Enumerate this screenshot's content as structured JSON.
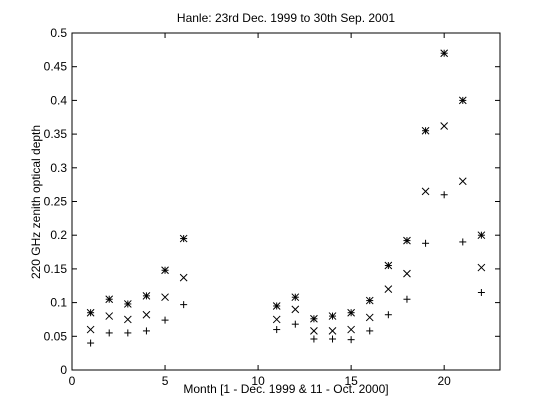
{
  "chart_data": {
    "type": "scatter",
    "title": "Hanle: 23rd  Dec. 1999 to 30th Sep. 2001",
    "xlabel": "Month [1 - Dec. 1999 & 11 - Oct. 2000]",
    "ylabel": "220 GHz zenith optical depth",
    "xlim": [
      0,
      23
    ],
    "ylim": [
      0,
      0.5
    ],
    "xticks": [
      0,
      5,
      10,
      15,
      20
    ],
    "yticks": [
      0,
      0.05,
      0.1,
      0.15,
      0.2,
      0.25,
      0.3,
      0.35,
      0.4,
      0.45,
      0.5
    ],
    "grid": false,
    "x": [
      1,
      2,
      3,
      4,
      5,
      6,
      11,
      12,
      13,
      14,
      15,
      16,
      17,
      18,
      19,
      20,
      21,
      22
    ],
    "series": [
      {
        "marker": "star",
        "values": [
          0.085,
          0.105,
          0.098,
          0.11,
          0.148,
          0.195,
          0.095,
          0.108,
          0.076,
          0.08,
          0.085,
          0.103,
          0.155,
          0.192,
          0.355,
          0.47,
          0.4,
          0.2
        ]
      },
      {
        "marker": "x",
        "values": [
          0.06,
          0.08,
          0.075,
          0.082,
          0.108,
          0.137,
          0.075,
          0.09,
          0.058,
          0.058,
          0.06,
          0.078,
          0.12,
          0.143,
          0.265,
          0.362,
          0.28,
          0.152
        ]
      },
      {
        "marker": "plus",
        "values": [
          0.04,
          0.055,
          0.055,
          0.058,
          0.074,
          0.097,
          0.06,
          0.068,
          0.046,
          0.046,
          0.045,
          0.058,
          0.082,
          0.105,
          0.188,
          0.26,
          0.19,
          0.115
        ]
      }
    ]
  }
}
